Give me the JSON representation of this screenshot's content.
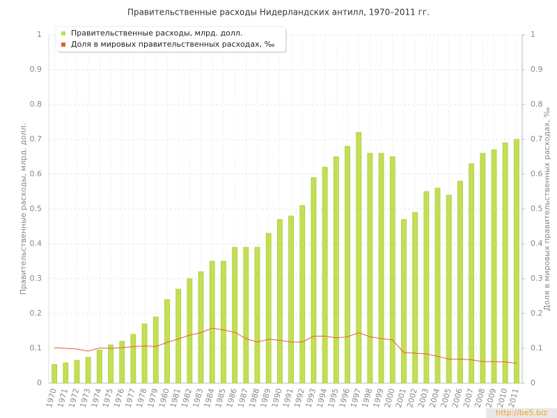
{
  "chart_data": {
    "type": "bar-line",
    "title": "Правительственные расходы Нидерландских антилл, 1970–2011 гг.",
    "y_label": "Правительственные расходы, млрд. долл.",
    "y2_label": "Доля в мировых правительственных расходах, ‰",
    "watermark": "http://be5.biz",
    "categories": [
      "1970",
      "1971",
      "1972",
      "1973",
      "1974",
      "1975",
      "1976",
      "1977",
      "1978",
      "1979",
      "1980",
      "1981",
      "1982",
      "1983",
      "1984",
      "1985",
      "1986",
      "1987",
      "1988",
      "1989",
      "1990",
      "1991",
      "1992",
      "1993",
      "1994",
      "1995",
      "1996",
      "1997",
      "1998",
      "1999",
      "2000",
      "2001",
      "2002",
      "2003",
      "2004",
      "2005",
      "2006",
      "2007",
      "2008",
      "2009",
      "2010",
      "2011"
    ],
    "series": [
      {
        "name": "Правительственные расходы, млрд. долл.",
        "type": "bar",
        "color": "#c3df55",
        "values": [
          0.054,
          0.058,
          0.066,
          0.074,
          0.095,
          0.11,
          0.12,
          0.14,
          0.17,
          0.19,
          0.24,
          0.27,
          0.3,
          0.32,
          0.35,
          0.35,
          0.39,
          0.39,
          0.39,
          0.43,
          0.47,
          0.48,
          0.51,
          0.59,
          0.62,
          0.65,
          0.68,
          0.72,
          0.66,
          0.66,
          0.65,
          0.47,
          0.49,
          0.55,
          0.56,
          0.54,
          0.58,
          0.63,
          0.66,
          0.67,
          0.69,
          0.7
        ]
      },
      {
        "name": "Доля в мировых правительственных расходах, ‰",
        "type": "line",
        "axis": "y2",
        "color": "#e0603a",
        "values": [
          0.102,
          0.1,
          0.098,
          0.092,
          0.101,
          0.1,
          0.102,
          0.105,
          0.107,
          0.105,
          0.117,
          0.127,
          0.138,
          0.145,
          0.158,
          0.153,
          0.146,
          0.128,
          0.118,
          0.126,
          0.123,
          0.118,
          0.118,
          0.135,
          0.135,
          0.13,
          0.133,
          0.145,
          0.133,
          0.128,
          0.124,
          0.088,
          0.086,
          0.084,
          0.077,
          0.069,
          0.069,
          0.067,
          0.062,
          0.062,
          0.061,
          0.057
        ]
      }
    ],
    "ylim": [
      0,
      1
    ],
    "yticks": [
      0,
      0.1,
      0.2,
      0.3,
      0.4,
      0.5,
      0.6,
      0.7,
      0.8,
      0.9,
      1
    ],
    "y2lim": [
      0,
      1
    ],
    "y2ticks": [
      0,
      0.1,
      0.2,
      0.3,
      0.4,
      0.5,
      0.6,
      0.7,
      0.8,
      0.9,
      1
    ],
    "grid": true,
    "legend": "top-left"
  }
}
